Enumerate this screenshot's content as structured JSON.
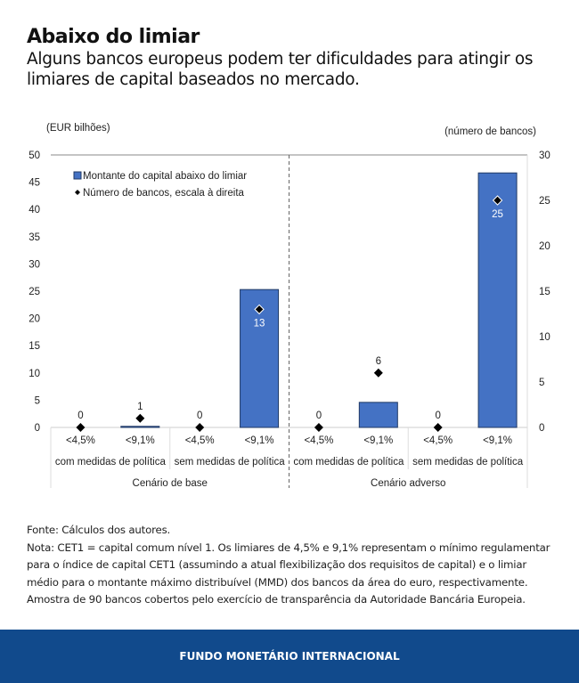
{
  "title": "Abaixo do limiar",
  "subtitle": "Alguns bancos europeus podem ter dificuldades para atingir os limiares de capital baseados no mercado.",
  "chart_data": {
    "type": "bar",
    "left_axis_label": "(EUR bilhões)",
    "right_axis_label": "(número de bancos)",
    "ylim": [
      0,
      50
    ],
    "y2lim": [
      0,
      30
    ],
    "yticks": [
      0,
      5,
      10,
      15,
      20,
      25,
      30,
      35,
      40,
      45,
      50
    ],
    "y2ticks": [
      0,
      5,
      10,
      15,
      20,
      25,
      30
    ],
    "categories": [
      "<4,5%",
      "<9,1%",
      "<4,5%",
      "<9,1%",
      "<4,5%",
      "<9,1%",
      "<4,5%",
      "<9,1%"
    ],
    "subgroups": [
      "com medidas de política",
      "sem medidas de política",
      "com medidas de política",
      "sem medidas de política"
    ],
    "groups": [
      "Cenário de base",
      "Cenário adverso"
    ],
    "series": [
      {
        "name": "Montante do capital abaixo do limiar",
        "type": "bar",
        "axis": "left",
        "color": "#4472c4",
        "values": [
          0,
          0.2,
          0,
          25.3,
          0,
          4.6,
          0,
          46.7
        ]
      },
      {
        "name": "Número de bancos, escala à direita",
        "type": "scatter",
        "axis": "right",
        "color": "#000000",
        "values": [
          0,
          1,
          0,
          13,
          0,
          6,
          0,
          25
        ]
      }
    ],
    "legend": "top-left"
  },
  "notes": {
    "source": "Fonte: Cálculos dos autores.",
    "note": "Nota: CET1 = capital comum nível 1. Os limiares de 4,5% e 9,1% representam o mínimo regulamentar para o índice de capital CET1 (assumindo a atual flexibilização dos requisitos de capital) e o limiar médio para o montante máximo distribuível (MMD) dos bancos da área do euro, respectivamente. Amostra de 90 bancos cobertos pelo exercício de transparência da Autoridade Bancária Europeia."
  },
  "footer": "FUNDO MONETÁRIO INTERNACIONAL"
}
